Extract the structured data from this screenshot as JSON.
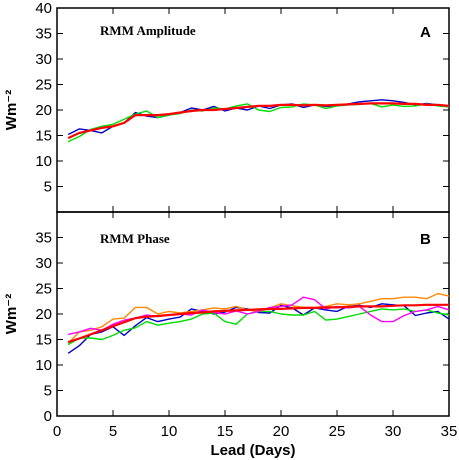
{
  "chart_data": {
    "type": "line",
    "xlabel": "Lead (Days)",
    "x_ticks": [
      0,
      5,
      10,
      15,
      20,
      25,
      30,
      35
    ],
    "xlim": [
      0,
      35
    ],
    "x": [
      1,
      2,
      3,
      4,
      5,
      6,
      7,
      8,
      9,
      10,
      11,
      12,
      13,
      14,
      15,
      16,
      17,
      18,
      19,
      20,
      21,
      22,
      23,
      24,
      25,
      26,
      27,
      28,
      29,
      30,
      31,
      32,
      33,
      34,
      35
    ],
    "series_colors": [
      "#ff0000",
      "#0000cc",
      "#00dd00",
      "#ff8800",
      "#ff00ff"
    ],
    "panels": [
      {
        "title": "RMM Amplitude",
        "letter": "A",
        "ylabel": "Wm⁻²",
        "ylim": [
          0,
          40
        ],
        "y_ticks": [
          5,
          10,
          15,
          20,
          25,
          30,
          35,
          40
        ],
        "series": [
          {
            "color": "#ff0000",
            "values": [
              14.5,
              15.5,
              16.0,
              16.5,
              16.8,
              17.5,
              19.0,
              19.0,
              19.0,
              19.2,
              19.5,
              19.8,
              20.0,
              20.0,
              20.2,
              20.4,
              20.6,
              20.8,
              20.8,
              21.0,
              21.0,
              20.9,
              21.0,
              20.9,
              21.0,
              21.1,
              21.2,
              21.3,
              21.3,
              21.3,
              21.2,
              21.2,
              21.0,
              21.0,
              20.8
            ]
          },
          {
            "color": "#0000cc",
            "values": [
              15.2,
              16.3,
              16.0,
              15.5,
              16.8,
              17.5,
              19.5,
              18.8,
              18.5,
              19.0,
              19.5,
              20.4,
              20.0,
              20.7,
              19.8,
              20.4,
              20.0,
              20.8,
              20.3,
              21.0,
              21.2,
              20.5,
              21.0,
              20.7,
              20.8,
              21.2,
              21.6,
              21.8,
              22.0,
              21.8,
              21.5,
              21.0,
              21.3,
              21.0,
              20.8
            ]
          },
          {
            "color": "#00dd00",
            "values": [
              13.8,
              14.8,
              16.2,
              16.8,
              17.2,
              18.2,
              19.2,
              19.8,
              18.5,
              19.0,
              19.3,
              20.0,
              19.8,
              20.4,
              20.2,
              20.8,
              21.2,
              20.0,
              19.7,
              20.5,
              20.6,
              21.2,
              21.0,
              20.3,
              20.8,
              21.0,
              21.1,
              21.3,
              20.6,
              21.0,
              20.7,
              20.8,
              21.2,
              20.8,
              20.6
            ]
          }
        ]
      },
      {
        "title": "RMM Phase",
        "letter": "B",
        "ylabel": "Wm⁻²",
        "ylim": [
          0,
          40
        ],
        "y_ticks": [
          0,
          5,
          10,
          15,
          20,
          25,
          30,
          35
        ],
        "series": [
          {
            "color": "#ff0000",
            "values": [
              14.5,
              15.2,
              16.0,
              16.8,
              17.6,
              18.4,
              19.2,
              19.5,
              19.6,
              19.8,
              20.0,
              20.2,
              20.3,
              20.5,
              20.6,
              20.7,
              20.8,
              20.9,
              21.0,
              21.0,
              21.1,
              21.2,
              21.2,
              21.3,
              21.3,
              21.4,
              21.5,
              21.5,
              21.5,
              21.6,
              21.7,
              21.7,
              21.8,
              21.8,
              21.8
            ]
          },
          {
            "color": "#0000cc",
            "values": [
              12.3,
              13.8,
              16.0,
              16.5,
              17.5,
              15.8,
              17.7,
              19.3,
              18.5,
              19.0,
              19.4,
              21.0,
              20.5,
              20.0,
              20.4,
              21.3,
              21.0,
              20.3,
              20.2,
              21.7,
              21.2,
              19.8,
              21.2,
              20.8,
              20.5,
              21.5,
              21.7,
              21.3,
              22.0,
              21.8,
              21.6,
              19.7,
              20.2,
              20.5,
              19.0
            ]
          },
          {
            "color": "#00dd00",
            "values": [
              14.0,
              15.3,
              15.3,
              15.0,
              15.8,
              16.8,
              17.3,
              18.5,
              17.8,
              18.2,
              18.5,
              19.0,
              20.0,
              20.2,
              18.5,
              18.0,
              20.0,
              20.5,
              20.5,
              20.0,
              19.8,
              19.8,
              20.5,
              18.8,
              19.0,
              19.5,
              20.0,
              20.5,
              21.0,
              20.8,
              21.0,
              20.5,
              20.8,
              20.2,
              19.8
            ]
          },
          {
            "color": "#ff8800",
            "values": [
              14.3,
              16.5,
              16.8,
              17.5,
              19.0,
              19.2,
              21.3,
              21.3,
              20.0,
              20.5,
              20.2,
              20.5,
              20.8,
              21.2,
              21.0,
              21.5,
              20.8,
              20.5,
              21.2,
              22.0,
              21.6,
              21.3,
              21.3,
              21.5,
              22.0,
              21.8,
              22.0,
              22.5,
              23.0,
              23.0,
              23.3,
              23.3,
              23.0,
              24.0,
              23.5
            ]
          },
          {
            "color": "#ff00ff",
            "values": [
              16.0,
              16.5,
              17.2,
              16.8,
              18.0,
              18.8,
              19.2,
              19.8,
              19.5,
              19.8,
              20.0,
              19.8,
              20.8,
              20.3,
              20.0,
              20.6,
              20.0,
              20.5,
              21.3,
              21.5,
              21.8,
              23.3,
              22.8,
              21.0,
              21.5,
              21.2,
              21.5,
              19.8,
              18.5,
              18.5,
              19.7,
              20.5,
              20.8,
              21.5,
              20.8
            ]
          }
        ]
      }
    ]
  }
}
